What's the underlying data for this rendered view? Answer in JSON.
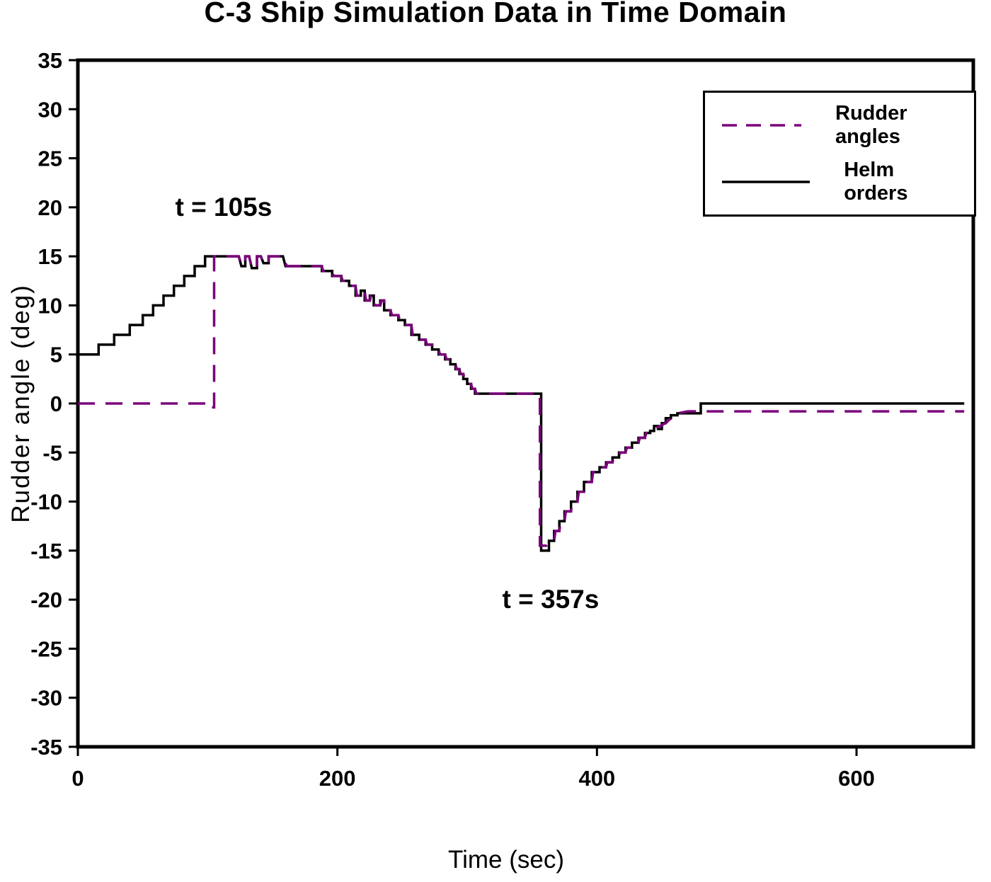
{
  "figure": {
    "background": "#ffffff"
  },
  "chart_data": {
    "type": "line",
    "title": "C-3 Ship Simulation Data in Time Domain",
    "xlabel": "Time (sec)",
    "ylabel": "Rudder angle (deg)",
    "xlim": [
      0,
      690
    ],
    "ylim": [
      -35,
      35
    ],
    "x_ticks": [
      0,
      200,
      400,
      600
    ],
    "y_ticks": [
      -35,
      -30,
      -25,
      -20,
      -15,
      -10,
      -5,
      0,
      5,
      10,
      15,
      20,
      25,
      30,
      35
    ],
    "grid": false,
    "legend_position": "top-right",
    "series": [
      {
        "name": "Rudder angles",
        "color": "#7B007B",
        "style": "dashed",
        "points": [
          [
            0,
            0
          ],
          [
            100,
            0
          ],
          [
            100,
            -0.4
          ],
          [
            105,
            -0.4
          ],
          [
            105,
            15
          ],
          [
            124,
            15
          ],
          [
            126,
            14.2
          ],
          [
            129,
            14.2
          ],
          [
            129,
            15
          ],
          [
            132,
            15
          ],
          [
            134,
            13.8
          ],
          [
            138,
            13.8
          ],
          [
            138,
            15
          ],
          [
            141,
            15
          ],
          [
            143,
            14.3
          ],
          [
            147,
            14.3
          ],
          [
            147,
            15
          ],
          [
            158,
            15
          ],
          [
            161,
            14
          ],
          [
            188,
            14
          ],
          [
            189,
            13.5
          ],
          [
            196,
            13.5
          ],
          [
            197,
            13
          ],
          [
            203,
            13
          ],
          [
            204,
            12.5
          ],
          [
            209,
            12.5
          ],
          [
            210,
            12
          ],
          [
            214,
            12
          ],
          [
            215,
            11
          ],
          [
            218,
            11
          ],
          [
            219,
            11.5
          ],
          [
            221,
            11.5
          ],
          [
            222,
            10.5
          ],
          [
            225,
            10.5
          ],
          [
            226,
            11
          ],
          [
            228,
            11
          ],
          [
            229,
            10
          ],
          [
            233,
            10
          ],
          [
            234,
            10.5
          ],
          [
            236,
            10.5
          ],
          [
            237,
            9.5
          ],
          [
            241,
            9.5
          ],
          [
            242,
            9
          ],
          [
            247,
            9
          ],
          [
            248,
            8.5
          ],
          [
            252,
            8.5
          ],
          [
            253,
            8
          ],
          [
            257,
            8
          ],
          [
            258,
            7
          ],
          [
            263,
            7
          ],
          [
            264,
            6.5
          ],
          [
            268,
            6.5
          ],
          [
            269,
            6
          ],
          [
            273,
            6
          ],
          [
            274,
            5.5
          ],
          [
            278,
            5.5
          ],
          [
            279,
            5
          ],
          [
            283,
            5
          ],
          [
            284,
            4.5
          ],
          [
            287,
            4.5
          ],
          [
            288,
            4
          ],
          [
            291,
            4
          ],
          [
            292,
            3.5
          ],
          [
            294,
            3.5
          ],
          [
            295,
            3
          ],
          [
            297,
            3
          ],
          [
            298,
            2.5
          ],
          [
            300,
            2.5
          ],
          [
            301,
            2
          ],
          [
            303,
            2
          ],
          [
            304,
            1.5
          ],
          [
            306,
            1.5
          ],
          [
            307,
            1
          ],
          [
            356,
            1
          ],
          [
            356,
            -14.5
          ],
          [
            361,
            -14.5
          ],
          [
            363,
            -14.2
          ],
          [
            364,
            -14
          ],
          [
            367,
            -14
          ],
          [
            368,
            -13
          ],
          [
            371,
            -13
          ],
          [
            372,
            -12
          ],
          [
            375,
            -12
          ],
          [
            376,
            -11
          ],
          [
            380,
            -11
          ],
          [
            381,
            -10
          ],
          [
            385,
            -10
          ],
          [
            386,
            -9
          ],
          [
            390,
            -9
          ],
          [
            391,
            -8
          ],
          [
            396,
            -8
          ],
          [
            397,
            -7
          ],
          [
            402,
            -7
          ],
          [
            403,
            -6.5
          ],
          [
            407,
            -6.5
          ],
          [
            408,
            -6
          ],
          [
            412,
            -6
          ],
          [
            413,
            -5.5
          ],
          [
            417,
            -5.5
          ],
          [
            418,
            -5
          ],
          [
            422,
            -5
          ],
          [
            423,
            -4.5
          ],
          [
            427,
            -4.5
          ],
          [
            428,
            -4
          ],
          [
            432,
            -4
          ],
          [
            433,
            -3.5
          ],
          [
            437,
            -3.5
          ],
          [
            438,
            -3
          ],
          [
            441,
            -3
          ],
          [
            444,
            -2.6
          ],
          [
            447,
            -2.4
          ],
          [
            450,
            -2.2
          ],
          [
            453,
            -2
          ],
          [
            457,
            -1.5
          ],
          [
            462,
            -1
          ],
          [
            470,
            -0.8
          ],
          [
            683,
            -0.8
          ]
        ]
      },
      {
        "name": "Helm orders",
        "color": "#000000",
        "style": "solid",
        "points": [
          [
            0,
            5
          ],
          [
            16,
            5
          ],
          [
            16,
            6
          ],
          [
            28,
            6
          ],
          [
            28,
            7
          ],
          [
            40,
            7
          ],
          [
            40,
            8
          ],
          [
            50,
            8
          ],
          [
            50,
            9
          ],
          [
            58,
            9
          ],
          [
            58,
            10
          ],
          [
            66,
            10
          ],
          [
            66,
            11
          ],
          [
            74,
            11
          ],
          [
            74,
            12
          ],
          [
            82,
            12
          ],
          [
            82,
            13
          ],
          [
            90,
            13
          ],
          [
            90,
            14
          ],
          [
            98,
            14
          ],
          [
            98,
            15
          ],
          [
            124,
            15
          ],
          [
            126,
            14
          ],
          [
            129,
            14
          ],
          [
            129,
            15
          ],
          [
            132,
            15
          ],
          [
            134,
            13.8
          ],
          [
            138,
            13.8
          ],
          [
            138,
            15
          ],
          [
            141,
            15
          ],
          [
            143,
            14.3
          ],
          [
            147,
            14.3
          ],
          [
            147,
            15
          ],
          [
            158,
            15
          ],
          [
            160,
            14
          ],
          [
            188,
            14
          ],
          [
            188,
            13.5
          ],
          [
            196,
            13.5
          ],
          [
            196,
            13
          ],
          [
            203,
            13
          ],
          [
            203,
            12.5
          ],
          [
            209,
            12.5
          ],
          [
            209,
            12
          ],
          [
            214,
            12
          ],
          [
            214,
            11
          ],
          [
            218,
            11
          ],
          [
            218,
            11.5
          ],
          [
            221,
            11.5
          ],
          [
            221,
            10.5
          ],
          [
            225,
            10.5
          ],
          [
            225,
            11
          ],
          [
            228,
            11
          ],
          [
            228,
            10
          ],
          [
            233,
            10
          ],
          [
            233,
            10.5
          ],
          [
            236,
            10.5
          ],
          [
            236,
            9.5
          ],
          [
            241,
            9.5
          ],
          [
            241,
            9
          ],
          [
            247,
            9
          ],
          [
            247,
            8.5
          ],
          [
            252,
            8.5
          ],
          [
            252,
            8
          ],
          [
            257,
            8
          ],
          [
            257,
            7
          ],
          [
            263,
            7
          ],
          [
            263,
            6.5
          ],
          [
            268,
            6.5
          ],
          [
            268,
            6
          ],
          [
            273,
            6
          ],
          [
            273,
            5.5
          ],
          [
            278,
            5.5
          ],
          [
            278,
            5
          ],
          [
            283,
            5
          ],
          [
            283,
            4.5
          ],
          [
            287,
            4.5
          ],
          [
            287,
            4
          ],
          [
            291,
            4
          ],
          [
            291,
            3.5
          ],
          [
            294,
            3.5
          ],
          [
            294,
            3
          ],
          [
            297,
            3
          ],
          [
            297,
            2.5
          ],
          [
            300,
            2.5
          ],
          [
            300,
            2
          ],
          [
            303,
            2
          ],
          [
            303,
            1.5
          ],
          [
            306,
            1.5
          ],
          [
            306,
            1
          ],
          [
            357,
            1
          ],
          [
            357,
            -15
          ],
          [
            363,
            -15
          ],
          [
            363,
            -14
          ],
          [
            367,
            -14
          ],
          [
            367,
            -13
          ],
          [
            371,
            -13
          ],
          [
            371,
            -12
          ],
          [
            375,
            -12
          ],
          [
            375,
            -11
          ],
          [
            380,
            -11
          ],
          [
            380,
            -10
          ],
          [
            385,
            -10
          ],
          [
            385,
            -9
          ],
          [
            390,
            -9
          ],
          [
            390,
            -8
          ],
          [
            396,
            -8
          ],
          [
            396,
            -7
          ],
          [
            402,
            -7
          ],
          [
            402,
            -6.5
          ],
          [
            407,
            -6.5
          ],
          [
            407,
            -6
          ],
          [
            412,
            -6
          ],
          [
            412,
            -5.5
          ],
          [
            417,
            -5.5
          ],
          [
            417,
            -5
          ],
          [
            422,
            -5
          ],
          [
            422,
            -4.5
          ],
          [
            427,
            -4.5
          ],
          [
            427,
            -4
          ],
          [
            432,
            -4
          ],
          [
            432,
            -3.5
          ],
          [
            437,
            -3.5
          ],
          [
            437,
            -3
          ],
          [
            441,
            -3
          ],
          [
            441,
            -2.8
          ],
          [
            444,
            -2.8
          ],
          [
            444,
            -2.3
          ],
          [
            447,
            -2.3
          ],
          [
            447,
            -2.6
          ],
          [
            450,
            -2.6
          ],
          [
            450,
            -2
          ],
          [
            453,
            -2
          ],
          [
            453,
            -1.5
          ],
          [
            457,
            -1.5
          ],
          [
            457,
            -1.2
          ],
          [
            462,
            -1.2
          ],
          [
            462,
            -1
          ],
          [
            480,
            -1
          ],
          [
            480,
            0
          ],
          [
            683,
            0
          ]
        ]
      }
    ],
    "annotations": [
      {
        "text": "t = 105s",
        "x": 75,
        "y": 20
      },
      {
        "text": "t = 357s",
        "x": 327,
        "y": -20
      }
    ]
  }
}
